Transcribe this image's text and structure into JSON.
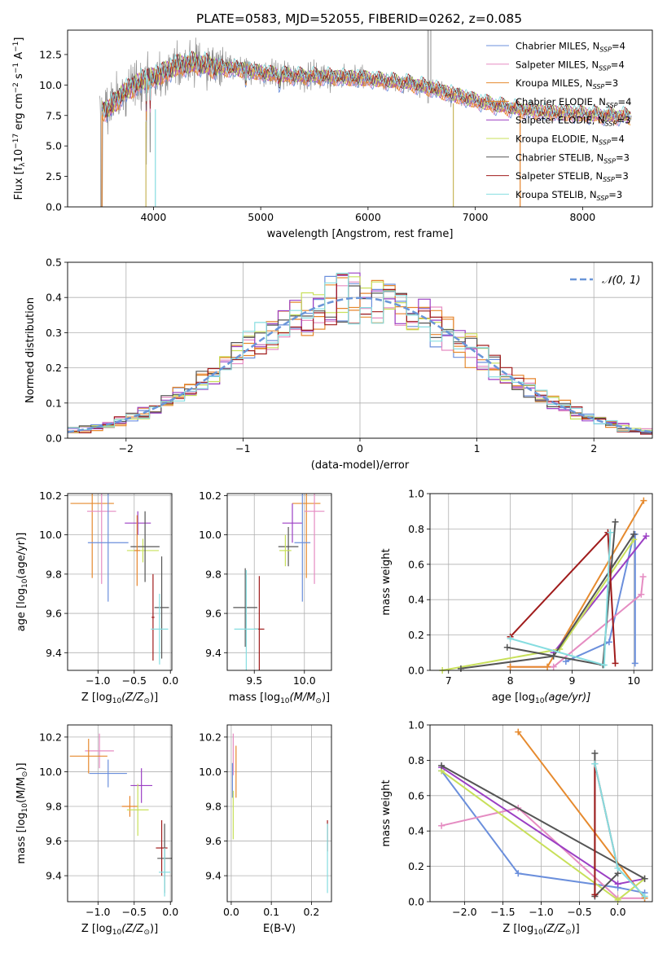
{
  "figure_title": "PLATE=0583, MJD=52055, FIBERID=0262, z=0.085",
  "colors": {
    "Chabrier MILES": "#6b8fdc",
    "Salpeter MILES": "#e58cc2",
    "Kroupa MILES": "#e68a2e",
    "Chabrier ELODIE": "#e6842c",
    "Salpeter ELODIE": "#9b3fc4",
    "Kroupa ELODIE": "#c8e05a",
    "Chabrier STELIB": "#555555",
    "Salpeter STELIB": "#a01c1c",
    "Kroupa STELIB": "#86dde0",
    "data": "#8c8c8c",
    "normal_curve": "#6a96d8"
  },
  "chart_data": [
    {
      "id": "spectrum",
      "type": "line",
      "xlabel": "wavelength [Angstrom, rest frame]",
      "ylabel_parts": [
        "Flux [f",
        "λ",
        "10",
        "−17",
        " erg cm",
        "−2",
        " s",
        "−1",
        " A",
        "−1",
        "]"
      ],
      "xlim": [
        3200,
        8650
      ],
      "ylim": [
        0,
        14.5
      ],
      "xticks": [
        4000,
        5000,
        6000,
        7000,
        8000
      ],
      "yticks": [
        0.0,
        2.5,
        5.0,
        7.5,
        10.0,
        12.5
      ],
      "ytick_labels": [
        "0.0",
        "2.5",
        "5.0",
        "7.5",
        "10.0",
        "12.5"
      ],
      "legend": [
        {
          "name": "Chabrier MILES",
          "nssp": "4"
        },
        {
          "name": "Salpeter MILES",
          "nssp": "4"
        },
        {
          "name": "Kroupa MILES",
          "nssp": "3"
        },
        {
          "name": "Chabrier ELODIE",
          "nssp": "4"
        },
        {
          "name": "Salpeter ELODIE",
          "nssp": "3"
        },
        {
          "name": "Kroupa ELODIE",
          "nssp": "4"
        },
        {
          "name": "Chabrier STELIB",
          "nssp": "3"
        },
        {
          "name": "Salpeter STELIB",
          "nssp": "3"
        },
        {
          "name": "Kroupa STELIB",
          "nssp": "3"
        }
      ],
      "legend_nssp_label": "N",
      "legend_nssp_sub": "SSP",
      "legend_position": "top-right",
      "continuum_x": [
        3500,
        3600,
        3700,
        3800,
        3900,
        4000,
        4100,
        4200,
        4300,
        4400,
        4600,
        4800,
        5000,
        5200,
        5400,
        5600,
        5800,
        6000,
        6200,
        6400,
        6600,
        6800,
        7000,
        7200,
        7400,
        7600,
        7800,
        8000,
        8200,
        8450
      ],
      "continuum_y": [
        7.9,
        8.1,
        9.2,
        9.8,
        10.4,
        10.6,
        11.0,
        11.5,
        11.7,
        11.8,
        11.4,
        11.3,
        11.0,
        10.8,
        10.7,
        10.7,
        10.6,
        10.5,
        10.3,
        10.1,
        9.7,
        9.2,
        8.7,
        8.3,
        8.0,
        7.8,
        7.7,
        7.6,
        7.5,
        7.4
      ]
    },
    {
      "id": "residuals",
      "type": "bar",
      "xlabel": "(data-model)/error",
      "ylabel": "Normed distribution",
      "xlim": [
        -2.5,
        2.5
      ],
      "ylim": [
        0,
        0.5
      ],
      "xticks": [
        -2,
        -1,
        0,
        1,
        2
      ],
      "xtick_labels": [
        "−2",
        "−1",
        "0",
        "1",
        "2"
      ],
      "yticks": [
        0.0,
        0.1,
        0.2,
        0.3,
        0.4,
        0.5
      ],
      "ytick_labels": [
        "0.0",
        "0.1",
        "0.2",
        "0.3",
        "0.4",
        "0.5"
      ],
      "legend_label": "𝒩(0, 1)",
      "legend_position": "top-right",
      "bin_start": -2.5,
      "bin_width": 0.1,
      "grid": true
    },
    {
      "id": "age_vs_z",
      "type": "scatter",
      "xlabel_parts": [
        "Z [log",
        "10",
        "(Z/Z",
        "⊙",
        ")]"
      ],
      "ylabel_parts": [
        "age  [log",
        "10",
        "(age/yr)]"
      ],
      "xlim": [
        -1.42,
        0.02
      ],
      "ylim": [
        9.31,
        10.21
      ],
      "xticks": [
        -1.0,
        -0.5,
        0.0
      ],
      "xtick_labels": [
        "−1.0",
        "−0.5",
        "0.0"
      ],
      "yticks": [
        9.4,
        9.6,
        9.8,
        10.0,
        10.2
      ],
      "ytick_labels": [
        "9.4",
        "9.6",
        "9.8",
        "10.0",
        "10.2"
      ],
      "points": [
        {
          "s": "Kroupa MILES",
          "x": -1.08,
          "y": 10.16,
          "xerr": 0.3,
          "yerr": 0.38
        },
        {
          "s": "Salpeter MILES",
          "x": -0.95,
          "y": 10.12,
          "xerr": 0.2,
          "yerr": 0.37
        },
        {
          "s": "Chabrier MILES",
          "x": -0.86,
          "y": 9.96,
          "xerr": 0.28,
          "yerr": 0.3
        },
        {
          "s": "Salpeter ELODIE",
          "x": -0.45,
          "y": 10.06,
          "xerr": 0.18,
          "yerr": 0.06
        },
        {
          "s": "Kroupa ELODIE",
          "x": -0.38,
          "y": 9.92,
          "xerr": 0.22,
          "yerr": 0.06
        },
        {
          "s": "Chabrier STELIB",
          "x": -0.35,
          "y": 9.94,
          "xerr": 0.2,
          "yerr": 0.18
        },
        {
          "s": "Chabrier ELODIE",
          "x": -0.46,
          "y": 9.92,
          "xerr": 0.04,
          "yerr": 0.18
        },
        {
          "s": "Chabrier STELIB",
          "x": -0.12,
          "y": 9.63,
          "xerr": 0.1,
          "yerr": 0.26
        },
        {
          "s": "Salpeter STELIB",
          "x": -0.24,
          "y": 9.58,
          "xerr": 0.02,
          "yerr": 0.22
        },
        {
          "s": "Kroupa STELIB",
          "x": -0.15,
          "y": 9.52,
          "xerr": 0.12,
          "yerr": 0.18
        }
      ]
    },
    {
      "id": "age_vs_mass",
      "type": "scatter",
      "xlabel_parts": [
        "mass [log",
        "10",
        "(M/M",
        "⊙",
        ")]"
      ],
      "ylabel_parts": [],
      "xlim": [
        9.23,
        10.27
      ],
      "ylim": [
        9.31,
        10.21
      ],
      "xticks": [
        9.5,
        10.0
      ],
      "xtick_labels": [
        "9.5",
        "10.0"
      ],
      "yticks": [
        9.4,
        9.6,
        9.8,
        10.0,
        10.2
      ],
      "ytick_labels": [
        "9.4",
        "9.6",
        "9.8",
        "10.0",
        "10.2"
      ],
      "points": [
        {
          "s": "Kroupa MILES",
          "x": 10.02,
          "y": 10.16,
          "xerr": 0.14,
          "yerr": 0.38
        },
        {
          "s": "Salpeter MILES",
          "x": 10.1,
          "y": 10.12,
          "xerr": 0.1,
          "yerr": 0.37
        },
        {
          "s": "Salpeter ELODIE",
          "x": 9.88,
          "y": 10.06,
          "xerr": 0.1,
          "yerr": 0.1
        },
        {
          "s": "Chabrier MILES",
          "x": 9.98,
          "y": 9.96,
          "xerr": 0.08,
          "yerr": 0.3
        },
        {
          "s": "Chabrier STELIB",
          "x": 9.84,
          "y": 9.94,
          "xerr": 0.1,
          "yerr": 0.1
        },
        {
          "s": "Kroupa ELODIE",
          "x": 9.81,
          "y": 9.92,
          "xerr": 0.06,
          "yerr": 0.08
        },
        {
          "s": "Chabrier STELIB",
          "x": 9.41,
          "y": 9.63,
          "xerr": 0.12,
          "yerr": 0.2
        },
        {
          "s": "Salpeter STELIB",
          "x": 9.55,
          "y": 9.52,
          "xerr": 0.05,
          "yerr": 0.27
        },
        {
          "s": "Kroupa STELIB",
          "x": 9.42,
          "y": 9.52,
          "xerr": 0.12,
          "yerr": 0.3
        }
      ]
    },
    {
      "id": "weight_vs_age",
      "type": "line",
      "xlabel_parts": [
        "age  [log",
        "10",
        "(age/yr)]"
      ],
      "ylabel": "mass weight",
      "xlim": [
        6.7,
        10.3
      ],
      "ylim": [
        0.0,
        1.0
      ],
      "xticks": [
        7,
        8,
        9,
        10
      ],
      "xtick_labels": [
        "7",
        "8",
        "9",
        "10"
      ],
      "yticks": [
        0.0,
        0.2,
        0.4,
        0.6,
        0.8,
        1.0
      ],
      "ytick_labels": [
        "0.0",
        "0.2",
        "0.4",
        "0.6",
        "0.8",
        "1.0"
      ],
      "series": [
        {
          "s": "Chabrier MILES",
          "x": [
            8.9,
            9.6,
            10.0
          ],
          "y": [
            0.05,
            0.16,
            0.77
          ]
        },
        {
          "s": "Chabrier MILES",
          "x": [
            10.02,
            10.02
          ],
          "y": [
            0.04,
            0.77
          ]
        },
        {
          "s": "Salpeter MILES",
          "x": [
            8.0,
            8.7,
            10.12,
            10.15
          ],
          "y": [
            0.02,
            0.02,
            0.43,
            0.53
          ]
        },
        {
          "s": "Kroupa MILES",
          "x": [
            8.0,
            8.6,
            10.16
          ],
          "y": [
            0.02,
            0.02,
            0.96
          ]
        },
        {
          "s": "Salpeter ELODIE",
          "x": [
            8.7,
            10.2
          ],
          "y": [
            0.1,
            0.76
          ]
        },
        {
          "s": "Kroupa ELODIE",
          "x": [
            6.9,
            8.8,
            10.0
          ],
          "y": [
            0.0,
            0.12,
            0.74
          ]
        },
        {
          "s": "Chabrier STELIB",
          "x": [
            7.95,
            9.5,
            9.7
          ],
          "y": [
            0.13,
            0.03,
            0.84
          ]
        },
        {
          "s": "Chabrier STELIB",
          "x": [
            7.2,
            8.7,
            10.0
          ],
          "y": [
            0.01,
            0.08,
            0.77
          ]
        },
        {
          "s": "Salpeter STELIB",
          "x": [
            8.0,
            9.58,
            9.7
          ],
          "y": [
            0.19,
            0.78,
            0.04
          ]
        },
        {
          "s": "Kroupa STELIB",
          "x": [
            8.0,
            9.52,
            9.62
          ],
          "y": [
            0.18,
            0.03,
            0.78
          ]
        }
      ]
    },
    {
      "id": "mass_vs_z",
      "type": "scatter",
      "xlabel_parts": [
        "Z [log",
        "10",
        "(Z/Z",
        "⊙",
        ")]"
      ],
      "ylabel_parts": [
        "mass [log",
        "10",
        "(M/M",
        "⊙",
        ")]"
      ],
      "xlim": [
        -1.42,
        0.02
      ],
      "ylim": [
        9.25,
        10.27
      ],
      "xticks": [
        -1.0,
        -0.5,
        0.0
      ],
      "xtick_labels": [
        "−1.0",
        "−0.5",
        "0.0"
      ],
      "yticks": [
        9.4,
        9.6,
        9.8,
        10.0,
        10.2
      ],
      "ytick_labels": [
        "9.4",
        "9.6",
        "9.8",
        "10.0",
        "10.2"
      ],
      "points": [
        {
          "s": "Salpeter MILES",
          "x": -0.98,
          "y": 10.12,
          "xerr": 0.2,
          "yerr": 0.1
        },
        {
          "s": "Kroupa MILES",
          "x": -1.13,
          "y": 10.09,
          "xerr": 0.26,
          "yerr": 0.1
        },
        {
          "s": "Chabrier MILES",
          "x": -0.86,
          "y": 9.99,
          "xerr": 0.26,
          "yerr": 0.08
        },
        {
          "s": "Salpeter ELODIE",
          "x": -0.4,
          "y": 9.92,
          "xerr": 0.15,
          "yerr": 0.1
        },
        {
          "s": "Chabrier ELODIE",
          "x": -0.56,
          "y": 9.8,
          "xerr": 0.11,
          "yerr": 0.06
        },
        {
          "s": "Kroupa ELODIE",
          "x": -0.45,
          "y": 9.78,
          "xerr": 0.15,
          "yerr": 0.15
        },
        {
          "s": "Salpeter STELIB",
          "x": -0.12,
          "y": 9.56,
          "xerr": 0.08,
          "yerr": 0.16
        },
        {
          "s": "Chabrier STELIB",
          "x": -0.08,
          "y": 9.5,
          "xerr": 0.1,
          "yerr": 0.2
        },
        {
          "s": "Kroupa STELIB",
          "x": -0.08,
          "y": 9.42,
          "xerr": 0.08,
          "yerr": 0.14
        }
      ]
    },
    {
      "id": "mass_vs_ebv",
      "type": "scatter",
      "xlabel": "E(B-V)",
      "xlim": [
        -0.01,
        0.25
      ],
      "ylim": [
        9.25,
        10.27
      ],
      "xticks": [
        0.0,
        0.1,
        0.2
      ],
      "xtick_labels": [
        "0.0",
        "0.1",
        "0.2"
      ],
      "yticks": [
        9.4,
        9.6,
        9.8,
        10.0,
        10.2
      ],
      "ytick_labels": [
        "9.4",
        "9.6",
        "9.8",
        "10.0",
        "10.2"
      ],
      "points": [
        {
          "s": "Salpeter MILES",
          "x": 0.005,
          "y": 10.1,
          "xerr": 0,
          "yerr": 0.12
        },
        {
          "s": "Kroupa MILES",
          "x": 0.012,
          "y": 10.0,
          "xerr": 0,
          "yerr": 0.15
        },
        {
          "s": "Chabrier MILES",
          "x": 0.003,
          "y": 9.95,
          "xerr": 0,
          "yerr": 0.1
        },
        {
          "s": "Kroupa ELODIE",
          "x": 0.005,
          "y": 9.75,
          "xerr": 0,
          "yerr": 0.14
        },
        {
          "s": "Salpeter STELIB",
          "x": 0.24,
          "y": 9.63,
          "xerr": 0,
          "yerr": 0.09
        },
        {
          "s": "Kroupa STELIB",
          "x": 0.24,
          "y": 9.5,
          "xerr": 0,
          "yerr": 0.2
        }
      ]
    },
    {
      "id": "weight_vs_z",
      "type": "line",
      "xlabel_parts": [
        "Z [log",
        "10",
        "(Z/Z",
        "⊙",
        ")]"
      ],
      "ylabel": "mass weight",
      "xlim": [
        -2.45,
        0.45
      ],
      "ylim": [
        0.0,
        1.0
      ],
      "xticks": [
        -2.0,
        -1.5,
        -1.0,
        -0.5,
        0.0
      ],
      "xtick_labels": [
        "−2.0",
        "−1.5",
        "−1.0",
        "−0.5",
        "0.0"
      ],
      "yticks": [
        0.0,
        0.2,
        0.4,
        0.6,
        0.8,
        1.0
      ],
      "ytick_labels": [
        "0.0",
        "0.2",
        "0.4",
        "0.6",
        "0.8",
        "1.0"
      ],
      "series": [
        {
          "s": "Chabrier MILES",
          "x": [
            -2.3,
            -1.3,
            0.0,
            0.35
          ],
          "y": [
            0.74,
            0.16,
            0.08,
            0.05
          ]
        },
        {
          "s": "Salpeter MILES",
          "x": [
            -2.3,
            -1.3,
            0.0,
            0.35
          ],
          "y": [
            0.43,
            0.53,
            0.02,
            0.02
          ]
        },
        {
          "s": "Kroupa MILES",
          "x": [
            -1.3,
            0.35
          ],
          "y": [
            0.96,
            0.02
          ]
        },
        {
          "s": "Salpeter ELODIE",
          "x": [
            -2.3,
            0.0,
            0.35
          ],
          "y": [
            0.76,
            0.1,
            0.13
          ]
        },
        {
          "s": "Kroupa ELODIE",
          "x": [
            -2.3,
            0.0,
            0.35
          ],
          "y": [
            0.74,
            0.01,
            0.13
          ]
        },
        {
          "s": "Chabrier STELIB",
          "x": [
            -2.3,
            0.35
          ],
          "y": [
            0.77,
            0.13
          ]
        },
        {
          "s": "Chabrier STELIB",
          "x": [
            -0.3,
            -0.3,
            0.0
          ],
          "y": [
            0.84,
            0.03,
            0.16
          ]
        },
        {
          "s": "Salpeter STELIB",
          "x": [
            -0.3,
            -0.3,
            0.0
          ],
          "y": [
            0.04,
            0.78,
            0.19
          ]
        },
        {
          "s": "Kroupa STELIB",
          "x": [
            -0.3,
            0.0,
            0.35
          ],
          "y": [
            0.78,
            0.19,
            0.03
          ]
        }
      ]
    }
  ]
}
